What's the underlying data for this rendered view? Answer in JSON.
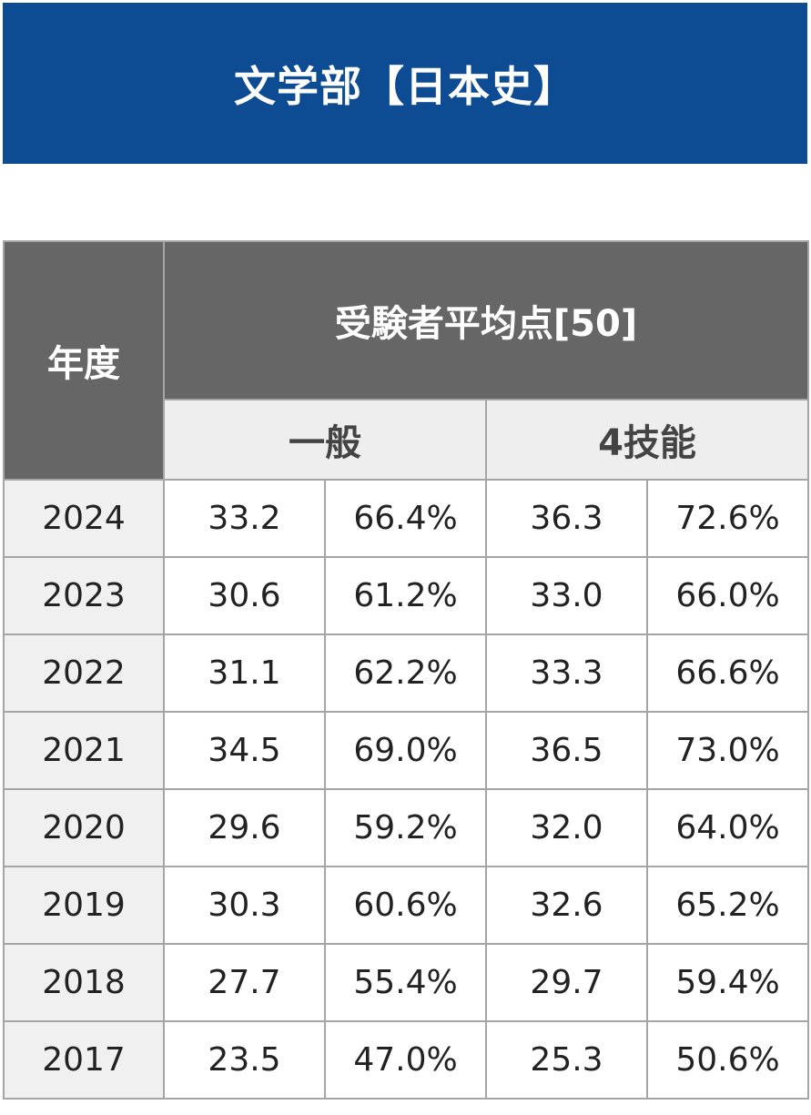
{
  "title": "文学部【日本史】",
  "table": {
    "year_header": "年度",
    "avg_header": "受験者平均点[50]",
    "sub_headers": [
      "一般",
      "4技能"
    ],
    "rows": [
      {
        "year": "2024",
        "general_score": "33.2",
        "general_pct": "66.4%",
        "skill4_score": "36.3",
        "skill4_pct": "72.6%"
      },
      {
        "year": "2023",
        "general_score": "30.6",
        "general_pct": "61.2%",
        "skill4_score": "33.0",
        "skill4_pct": "66.0%"
      },
      {
        "year": "2022",
        "general_score": "31.1",
        "general_pct": "62.2%",
        "skill4_score": "33.3",
        "skill4_pct": "66.6%"
      },
      {
        "year": "2021",
        "general_score": "34.5",
        "general_pct": "69.0%",
        "skill4_score": "36.5",
        "skill4_pct": "73.0%"
      },
      {
        "year": "2020",
        "general_score": "29.6",
        "general_pct": "59.2%",
        "skill4_score": "32.0",
        "skill4_pct": "64.0%"
      },
      {
        "year": "2019",
        "general_score": "30.3",
        "general_pct": "60.6%",
        "skill4_score": "32.6",
        "skill4_pct": "65.2%"
      },
      {
        "year": "2018",
        "general_score": "27.7",
        "general_pct": "55.4%",
        "skill4_score": "29.7",
        "skill4_pct": "59.4%"
      },
      {
        "year": "2017",
        "general_score": "23.5",
        "general_pct": "47.0%",
        "skill4_score": "25.3",
        "skill4_pct": "50.6%"
      }
    ]
  },
  "colors": {
    "banner": "#0d4c92",
    "header_dark": "#666666",
    "header_light": "#eeeeee",
    "year_cell": "#f0f0f0",
    "border": "#a5a5a5"
  }
}
